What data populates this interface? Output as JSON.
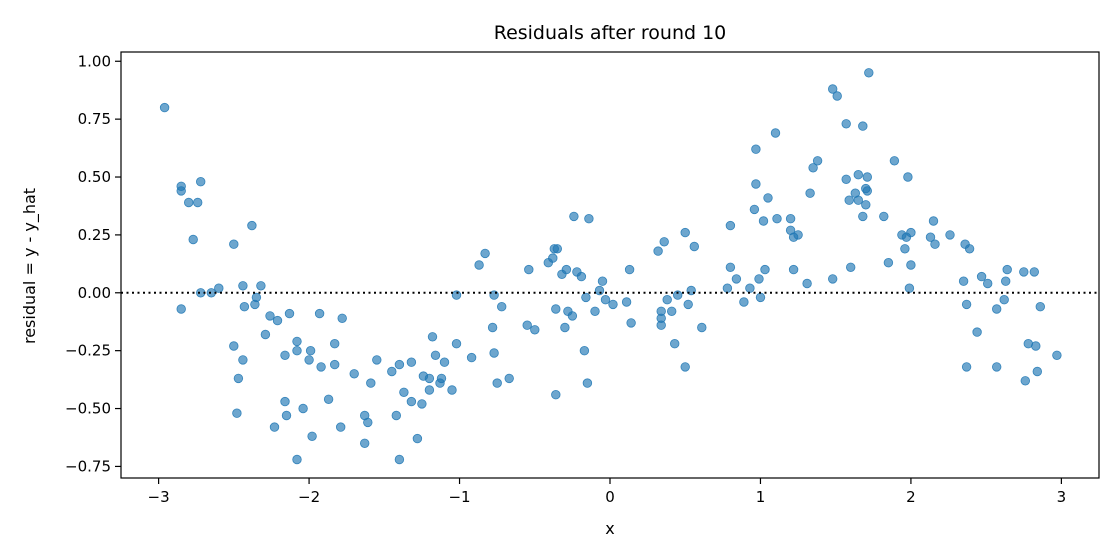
{
  "chart_data": {
    "type": "scatter",
    "title": "Residuals after round 10",
    "xlabel": "x",
    "ylabel": "residual = y - y_hat",
    "xlim": [
      -3.25,
      3.25
    ],
    "ylim": [
      -0.8,
      1.04
    ],
    "xticks": [
      -3,
      -2,
      -1,
      0,
      1,
      2,
      3
    ],
    "xtick_labels": [
      "−3",
      "−2",
      "−1",
      "0",
      "1",
      "2",
      "3"
    ],
    "yticks": [
      -0.75,
      -0.5,
      -0.25,
      0.0,
      0.25,
      0.5,
      0.75,
      1.0
    ],
    "ytick_labels": [
      "−0.75",
      "−0.50",
      "−0.25",
      "0.00",
      "0.25",
      "0.50",
      "0.75",
      "1.00"
    ],
    "reference_line": {
      "y": 0,
      "style": "dotted",
      "color": "#000000"
    },
    "marker_color": "#1f77b4",
    "marker_alpha": 0.65,
    "grid": false,
    "points": [
      [
        -2.96,
        0.8
      ],
      [
        -2.85,
        0.46
      ],
      [
        -2.85,
        0.44
      ],
      [
        -2.85,
        -0.07
      ],
      [
        -2.8,
        0.39
      ],
      [
        -2.77,
        0.23
      ],
      [
        -2.74,
        0.39
      ],
      [
        -2.72,
        0.48
      ],
      [
        -2.72,
        0.0
      ],
      [
        -2.65,
        0.0
      ],
      [
        -2.6,
        0.02
      ],
      [
        -2.5,
        0.21
      ],
      [
        -2.5,
        -0.23
      ],
      [
        -2.48,
        -0.52
      ],
      [
        -2.47,
        -0.37
      ],
      [
        -2.44,
        0.03
      ],
      [
        -2.44,
        -0.29
      ],
      [
        -2.43,
        -0.06
      ],
      [
        -2.38,
        0.29
      ],
      [
        -2.36,
        -0.05
      ],
      [
        -2.35,
        -0.02
      ],
      [
        -2.32,
        0.03
      ],
      [
        -2.29,
        -0.18
      ],
      [
        -2.26,
        -0.1
      ],
      [
        -2.23,
        -0.58
      ],
      [
        -2.21,
        -0.12
      ],
      [
        -2.16,
        -0.27
      ],
      [
        -2.16,
        -0.47
      ],
      [
        -2.15,
        -0.53
      ],
      [
        -2.13,
        -0.09
      ],
      [
        -2.08,
        -0.21
      ],
      [
        -2.08,
        -0.25
      ],
      [
        -2.08,
        -0.72
      ],
      [
        -2.04,
        -0.5
      ],
      [
        -2.0,
        -0.29
      ],
      [
        -1.99,
        -0.25
      ],
      [
        -1.98,
        -0.62
      ],
      [
        -1.93,
        -0.09
      ],
      [
        -1.92,
        -0.32
      ],
      [
        -1.87,
        -0.46
      ],
      [
        -1.83,
        -0.31
      ],
      [
        -1.83,
        -0.22
      ],
      [
        -1.79,
        -0.58
      ],
      [
        -1.78,
        -0.11
      ],
      [
        -1.7,
        -0.35
      ],
      [
        -1.63,
        -0.53
      ],
      [
        -1.63,
        -0.65
      ],
      [
        -1.61,
        -0.56
      ],
      [
        -1.59,
        -0.39
      ],
      [
        -1.55,
        -0.29
      ],
      [
        -1.45,
        -0.34
      ],
      [
        -1.42,
        -0.53
      ],
      [
        -1.4,
        -0.31
      ],
      [
        -1.4,
        -0.72
      ],
      [
        -1.37,
        -0.43
      ],
      [
        -1.32,
        -0.47
      ],
      [
        -1.32,
        -0.3
      ],
      [
        -1.28,
        -0.63
      ],
      [
        -1.25,
        -0.48
      ],
      [
        -1.24,
        -0.36
      ],
      [
        -1.2,
        -0.37
      ],
      [
        -1.2,
        -0.42
      ],
      [
        -1.18,
        -0.19
      ],
      [
        -1.16,
        -0.27
      ],
      [
        -1.13,
        -0.39
      ],
      [
        -1.12,
        -0.37
      ],
      [
        -1.1,
        -0.3
      ],
      [
        -1.05,
        -0.42
      ],
      [
        -1.02,
        -0.22
      ],
      [
        -1.02,
        -0.01
      ],
      [
        -0.92,
        -0.28
      ],
      [
        -0.87,
        0.12
      ],
      [
        -0.83,
        0.17
      ],
      [
        -0.78,
        -0.15
      ],
      [
        -0.77,
        -0.26
      ],
      [
        -0.77,
        -0.01
      ],
      [
        -0.75,
        -0.39
      ],
      [
        -0.72,
        -0.06
      ],
      [
        -0.67,
        -0.37
      ],
      [
        -0.55,
        -0.14
      ],
      [
        -0.54,
        0.1
      ],
      [
        -0.5,
        -0.16
      ],
      [
        -0.41,
        0.13
      ],
      [
        -0.38,
        0.15
      ],
      [
        -0.37,
        0.19
      ],
      [
        -0.36,
        -0.44
      ],
      [
        -0.36,
        -0.07
      ],
      [
        -0.35,
        0.19
      ],
      [
        -0.32,
        0.08
      ],
      [
        -0.3,
        -0.15
      ],
      [
        -0.29,
        0.1
      ],
      [
        -0.28,
        -0.08
      ],
      [
        -0.25,
        -0.1
      ],
      [
        -0.24,
        0.33
      ],
      [
        -0.22,
        0.09
      ],
      [
        -0.19,
        0.07
      ],
      [
        -0.17,
        -0.25
      ],
      [
        -0.16,
        -0.02
      ],
      [
        -0.15,
        -0.39
      ],
      [
        -0.14,
        0.32
      ],
      [
        -0.1,
        -0.08
      ],
      [
        -0.07,
        0.01
      ],
      [
        -0.05,
        0.05
      ],
      [
        -0.03,
        -0.03
      ],
      [
        0.02,
        -0.05
      ],
      [
        0.11,
        -0.04
      ],
      [
        0.13,
        0.1
      ],
      [
        0.14,
        -0.13
      ],
      [
        0.32,
        0.18
      ],
      [
        0.34,
        -0.08
      ],
      [
        0.34,
        -0.11
      ],
      [
        0.34,
        -0.14
      ],
      [
        0.36,
        0.22
      ],
      [
        0.38,
        -0.03
      ],
      [
        0.41,
        -0.08
      ],
      [
        0.43,
        -0.22
      ],
      [
        0.45,
        -0.01
      ],
      [
        0.5,
        0.26
      ],
      [
        0.5,
        -0.32
      ],
      [
        0.52,
        -0.05
      ],
      [
        0.54,
        0.01
      ],
      [
        0.56,
        0.2
      ],
      [
        0.61,
        -0.15
      ],
      [
        0.78,
        0.02
      ],
      [
        0.8,
        0.29
      ],
      [
        0.8,
        0.11
      ],
      [
        0.84,
        0.06
      ],
      [
        0.89,
        -0.04
      ],
      [
        0.93,
        0.02
      ],
      [
        0.96,
        0.36
      ],
      [
        0.97,
        0.47
      ],
      [
        0.97,
        0.62
      ],
      [
        0.99,
        0.06
      ],
      [
        1.0,
        -0.02
      ],
      [
        1.02,
        0.31
      ],
      [
        1.03,
        0.1
      ],
      [
        1.05,
        0.41
      ],
      [
        1.1,
        0.69
      ],
      [
        1.11,
        0.32
      ],
      [
        1.2,
        0.32
      ],
      [
        1.2,
        0.27
      ],
      [
        1.22,
        0.24
      ],
      [
        1.22,
        0.1
      ],
      [
        1.25,
        0.25
      ],
      [
        1.31,
        0.04
      ],
      [
        1.33,
        0.43
      ],
      [
        1.35,
        0.54
      ],
      [
        1.38,
        0.57
      ],
      [
        1.48,
        0.88
      ],
      [
        1.48,
        0.06
      ],
      [
        1.51,
        0.85
      ],
      [
        1.57,
        0.49
      ],
      [
        1.57,
        0.73
      ],
      [
        1.59,
        0.4
      ],
      [
        1.6,
        0.11
      ],
      [
        1.63,
        0.43
      ],
      [
        1.65,
        0.4
      ],
      [
        1.65,
        0.51
      ],
      [
        1.68,
        0.33
      ],
      [
        1.68,
        0.72
      ],
      [
        1.7,
        0.45
      ],
      [
        1.7,
        0.38
      ],
      [
        1.71,
        0.5
      ],
      [
        1.71,
        0.44
      ],
      [
        1.72,
        0.95
      ],
      [
        1.82,
        0.33
      ],
      [
        1.85,
        0.13
      ],
      [
        1.89,
        0.57
      ],
      [
        1.94,
        0.25
      ],
      [
        1.96,
        0.19
      ],
      [
        1.97,
        0.24
      ],
      [
        1.98,
        0.5
      ],
      [
        1.99,
        0.02
      ],
      [
        2.0,
        0.26
      ],
      [
        2.0,
        0.12
      ],
      [
        2.13,
        0.24
      ],
      [
        2.15,
        0.31
      ],
      [
        2.16,
        0.21
      ],
      [
        2.26,
        0.25
      ],
      [
        2.35,
        0.05
      ],
      [
        2.36,
        0.21
      ],
      [
        2.37,
        -0.05
      ],
      [
        2.37,
        -0.32
      ],
      [
        2.39,
        0.19
      ],
      [
        2.44,
        -0.17
      ],
      [
        2.47,
        0.07
      ],
      [
        2.51,
        0.04
      ],
      [
        2.57,
        -0.07
      ],
      [
        2.57,
        -0.32
      ],
      [
        2.62,
        -0.03
      ],
      [
        2.63,
        0.05
      ],
      [
        2.64,
        0.1
      ],
      [
        2.75,
        0.09
      ],
      [
        2.76,
        -0.38
      ],
      [
        2.78,
        -0.22
      ],
      [
        2.82,
        0.09
      ],
      [
        2.83,
        -0.23
      ],
      [
        2.84,
        -0.34
      ],
      [
        2.86,
        -0.06
      ],
      [
        2.97,
        -0.27
      ]
    ]
  }
}
